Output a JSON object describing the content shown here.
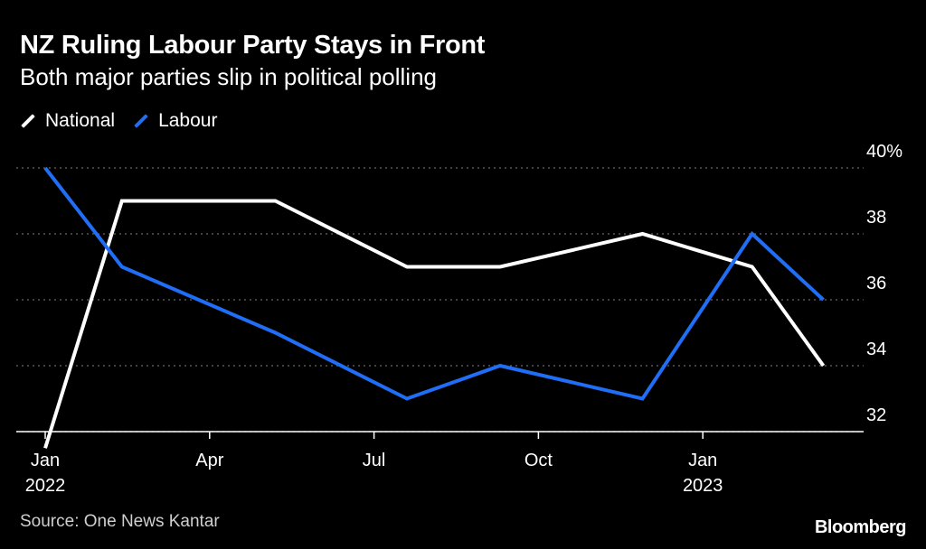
{
  "title": "NZ Ruling Labour Party Stays in Front",
  "subtitle": "Both major parties slip in political polling",
  "source": "Source: One News Kantar",
  "logo": "Bloomberg",
  "colors": {
    "national": "#ffffff",
    "labour": "#1f6ef5",
    "grid": "#666666",
    "axis": "#ffffff"
  },
  "chart_data": {
    "type": "line",
    "title": "NZ Ruling Labour Party Stays in Front",
    "subtitle": "Both major parties slip in political polling",
    "xlabel": "",
    "ylabel": "",
    "ylim": [
      31.5,
      40
    ],
    "y_ticks": [
      {
        "value": 40,
        "label": "40%"
      },
      {
        "value": 38,
        "label": "38"
      },
      {
        "value": 36,
        "label": "36"
      },
      {
        "value": 34,
        "label": "34"
      },
      {
        "value": 32,
        "label": "32"
      }
    ],
    "x_ticks": [
      {
        "t": 0,
        "label": "Jan",
        "label2": "2022"
      },
      {
        "t": 3,
        "label": "Apr",
        "label2": ""
      },
      {
        "t": 6,
        "label": "Jul",
        "label2": ""
      },
      {
        "t": 9,
        "label": "Oct",
        "label2": ""
      },
      {
        "t": 12,
        "label": "Jan",
        "label2": "2023"
      }
    ],
    "legend": [
      "National",
      "Labour"
    ],
    "series": [
      {
        "name": "National",
        "points": [
          {
            "t": 0,
            "y": 31.5
          },
          {
            "t": 1.4,
            "y": 39
          },
          {
            "t": 4.2,
            "y": 39
          },
          {
            "t": 6.6,
            "y": 37
          },
          {
            "t": 8.3,
            "y": 37
          },
          {
            "t": 10.9,
            "y": 38
          },
          {
            "t": 12.9,
            "y": 37
          },
          {
            "t": 14.2,
            "y": 34
          }
        ]
      },
      {
        "name": "Labour",
        "points": [
          {
            "t": 0,
            "y": 40
          },
          {
            "t": 1.4,
            "y": 37
          },
          {
            "t": 4.2,
            "y": 35
          },
          {
            "t": 6.6,
            "y": 33
          },
          {
            "t": 8.3,
            "y": 34
          },
          {
            "t": 10.9,
            "y": 33
          },
          {
            "t": 12.9,
            "y": 38
          },
          {
            "t": 14.2,
            "y": 36
          }
        ]
      }
    ]
  }
}
